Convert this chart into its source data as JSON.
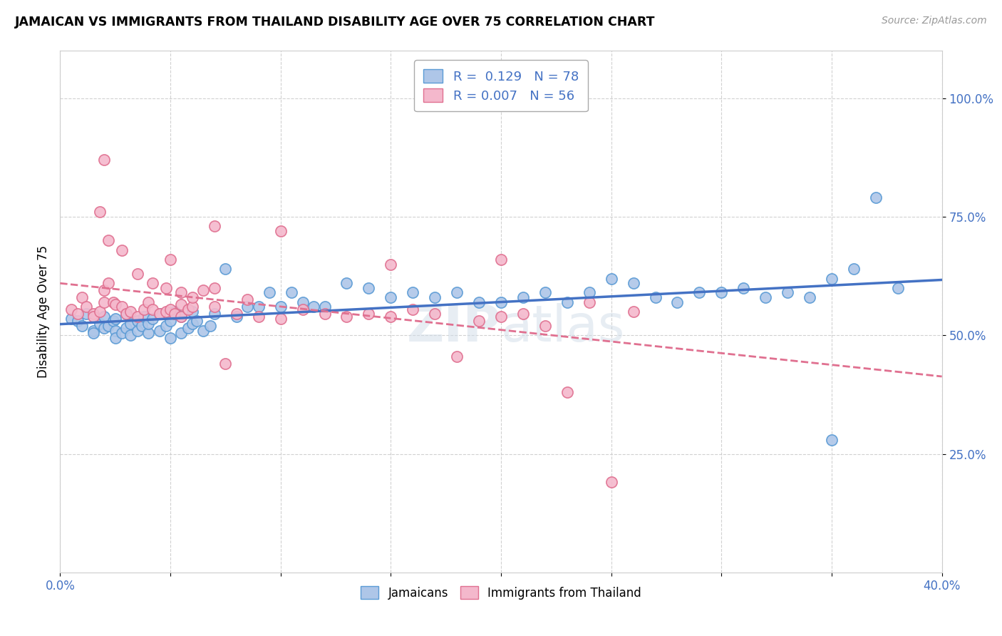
{
  "title": "JAMAICAN VS IMMIGRANTS FROM THAILAND DISABILITY AGE OVER 75 CORRELATION CHART",
  "source": "Source: ZipAtlas.com",
  "ylabel": "Disability Age Over 75",
  "ytick_labels": [
    "25.0%",
    "50.0%",
    "75.0%",
    "100.0%"
  ],
  "ytick_values": [
    0.25,
    0.5,
    0.75,
    1.0
  ],
  "xmin": 0.0,
  "xmax": 0.4,
  "ymin": 0.0,
  "ymax": 1.1,
  "jamaicans_color": "#aec6e8",
  "jamaicans_edge_color": "#5b9bd5",
  "thailand_color": "#f4b8cc",
  "thailand_edge_color": "#e07090",
  "jamaicans_line_color": "#4472c4",
  "thailand_line_color": "#e07090",
  "R_jamaicans": 0.129,
  "N_jamaicans": 78,
  "R_thailand": 0.007,
  "N_thailand": 56,
  "legend_label_1": "Jamaicans",
  "legend_label_2": "Immigrants from Thailand",
  "watermark": "ZIPatlas",
  "jamaicans_x": [
    0.005,
    0.008,
    0.01,
    0.012,
    0.015,
    0.015,
    0.018,
    0.02,
    0.02,
    0.022,
    0.024,
    0.025,
    0.025,
    0.025,
    0.028,
    0.03,
    0.03,
    0.032,
    0.032,
    0.035,
    0.035,
    0.037,
    0.038,
    0.04,
    0.04,
    0.042,
    0.045,
    0.045,
    0.048,
    0.05,
    0.05,
    0.052,
    0.055,
    0.055,
    0.058,
    0.06,
    0.06,
    0.062,
    0.065,
    0.068,
    0.07,
    0.075,
    0.08,
    0.085,
    0.09,
    0.095,
    0.1,
    0.105,
    0.11,
    0.115,
    0.12,
    0.13,
    0.14,
    0.15,
    0.16,
    0.17,
    0.18,
    0.19,
    0.2,
    0.21,
    0.22,
    0.23,
    0.24,
    0.25,
    0.26,
    0.27,
    0.28,
    0.29,
    0.3,
    0.31,
    0.32,
    0.33,
    0.34,
    0.35,
    0.36,
    0.37,
    0.38,
    0.35
  ],
  "jamaicans_y": [
    0.535,
    0.53,
    0.52,
    0.545,
    0.51,
    0.505,
    0.525,
    0.515,
    0.54,
    0.52,
    0.53,
    0.51,
    0.535,
    0.495,
    0.505,
    0.515,
    0.545,
    0.525,
    0.5,
    0.53,
    0.51,
    0.52,
    0.54,
    0.505,
    0.525,
    0.535,
    0.51,
    0.545,
    0.52,
    0.53,
    0.495,
    0.55,
    0.505,
    0.54,
    0.515,
    0.525,
    0.55,
    0.53,
    0.51,
    0.52,
    0.545,
    0.64,
    0.54,
    0.56,
    0.56,
    0.59,
    0.56,
    0.59,
    0.57,
    0.56,
    0.56,
    0.61,
    0.6,
    0.58,
    0.59,
    0.58,
    0.59,
    0.57,
    0.57,
    0.58,
    0.59,
    0.57,
    0.59,
    0.62,
    0.61,
    0.58,
    0.57,
    0.59,
    0.59,
    0.6,
    0.58,
    0.59,
    0.58,
    0.62,
    0.64,
    0.79,
    0.6,
    0.28
  ],
  "thailand_x": [
    0.005,
    0.008,
    0.01,
    0.012,
    0.015,
    0.015,
    0.018,
    0.02,
    0.02,
    0.022,
    0.024,
    0.025,
    0.028,
    0.03,
    0.032,
    0.035,
    0.038,
    0.04,
    0.042,
    0.045,
    0.048,
    0.05,
    0.052,
    0.055,
    0.055,
    0.058,
    0.06,
    0.065,
    0.07,
    0.075,
    0.08,
    0.085,
    0.09,
    0.1,
    0.11,
    0.12,
    0.13,
    0.14,
    0.15,
    0.16,
    0.17,
    0.18,
    0.19,
    0.2,
    0.21,
    0.22,
    0.23,
    0.24,
    0.25,
    0.26,
    0.05,
    0.1,
    0.15,
    0.2,
    0.02,
    0.07
  ],
  "thailand_y": [
    0.555,
    0.545,
    0.58,
    0.56,
    0.545,
    0.54,
    0.55,
    0.57,
    0.595,
    0.61,
    0.57,
    0.565,
    0.56,
    0.545,
    0.55,
    0.54,
    0.555,
    0.57,
    0.555,
    0.545,
    0.55,
    0.555,
    0.545,
    0.565,
    0.54,
    0.555,
    0.56,
    0.595,
    0.56,
    0.44,
    0.545,
    0.575,
    0.54,
    0.535,
    0.555,
    0.545,
    0.54,
    0.545,
    0.54,
    0.555,
    0.545,
    0.455,
    0.53,
    0.54,
    0.545,
    0.52,
    0.38,
    0.57,
    0.19,
    0.55,
    0.66,
    0.72,
    0.65,
    0.66,
    0.87,
    0.73
  ],
  "extra_thailand_x": [
    0.018,
    0.022,
    0.028,
    0.035,
    0.042,
    0.048,
    0.055,
    0.06,
    0.07
  ],
  "extra_thailand_y": [
    0.76,
    0.7,
    0.68,
    0.63,
    0.61,
    0.6,
    0.59,
    0.58,
    0.6
  ]
}
